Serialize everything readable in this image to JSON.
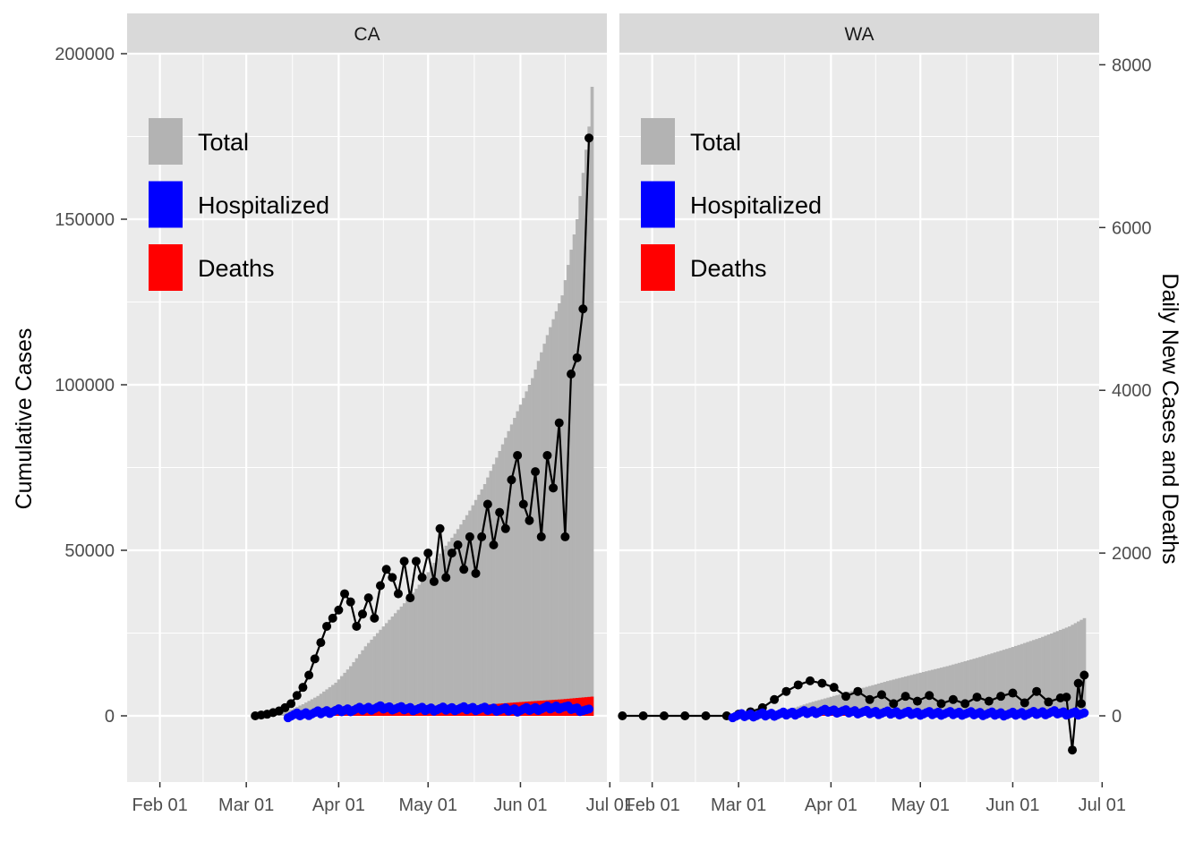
{
  "chart_data": {
    "type": "faceted bar + line + scatter",
    "ylabel_left": "Cumulative Cases",
    "ylabel_right": "Daily New Cases and Deaths",
    "x_ticks": [
      "Feb 01",
      "Mar 01",
      "Apr 01",
      "May 01",
      "Jun 01",
      "Jul 01"
    ],
    "y_left_ticks": [
      0,
      50000,
      100000,
      150000,
      200000
    ],
    "y_left_range": [
      -20000,
      200000
    ],
    "y_right_ticks": [
      0,
      2000,
      4000,
      6000,
      8000
    ],
    "legend": [
      "Total",
      "Hospitalized",
      "Deaths"
    ],
    "colors": {
      "total": "#b3b3b3",
      "hospitalized": "#0000ff",
      "deaths": "#ff0000",
      "daily": "#000000"
    },
    "panels": [
      {
        "label": "CA",
        "x_range": [
          "2020-01-21",
          "2020-06-30"
        ],
        "cumulative_total": {
          "dates": [
            "2020-03-04",
            "2020-03-10",
            "2020-03-15",
            "2020-03-20",
            "2020-03-25",
            "2020-03-31",
            "2020-04-05",
            "2020-04-10",
            "2020-04-15",
            "2020-04-20",
            "2020-04-25",
            "2020-04-30",
            "2020-05-05",
            "2020-05-10",
            "2020-05-15",
            "2020-05-20",
            "2020-05-25",
            "2020-05-31",
            "2020-06-05",
            "2020-06-10",
            "2020-06-15",
            "2020-06-20",
            "2020-06-24",
            "2020-06-25"
          ],
          "values": [
            200,
            600,
            1500,
            3500,
            6000,
            10000,
            15000,
            21000,
            26000,
            31000,
            36000,
            42000,
            49000,
            55000,
            62000,
            70000,
            80000,
            92000,
            102000,
            115000,
            127000,
            150000,
            178000,
            190000
          ]
        },
        "cumulative_deaths": {
          "dates": [
            "2020-03-15",
            "2020-03-31",
            "2020-04-15",
            "2020-04-30",
            "2020-05-15",
            "2020-05-31",
            "2020-06-15",
            "2020-06-25"
          ],
          "values": [
            0,
            500,
            1500,
            2200,
            3000,
            4100,
            5000,
            5800
          ]
        },
        "daily_new": {
          "dates": [
            "2020-03-04",
            "2020-03-06",
            "2020-03-08",
            "2020-03-10",
            "2020-03-12",
            "2020-03-14",
            "2020-03-16",
            "2020-03-18",
            "2020-03-20",
            "2020-03-22",
            "2020-03-24",
            "2020-03-26",
            "2020-03-28",
            "2020-03-30",
            "2020-04-01",
            "2020-04-03",
            "2020-04-05",
            "2020-04-07",
            "2020-04-09",
            "2020-04-11",
            "2020-04-13",
            "2020-04-15",
            "2020-04-17",
            "2020-04-19",
            "2020-04-21",
            "2020-04-23",
            "2020-04-25",
            "2020-04-27",
            "2020-04-29",
            "2020-05-01",
            "2020-05-03",
            "2020-05-05",
            "2020-05-07",
            "2020-05-09",
            "2020-05-11",
            "2020-05-13",
            "2020-05-15",
            "2020-05-17",
            "2020-05-19",
            "2020-05-21",
            "2020-05-23",
            "2020-05-25",
            "2020-05-27",
            "2020-05-29",
            "2020-05-31",
            "2020-06-02",
            "2020-06-04",
            "2020-06-06",
            "2020-06-08",
            "2020-06-10",
            "2020-06-12",
            "2020-06-14",
            "2020-06-16",
            "2020-06-18",
            "2020-06-20",
            "2020-06-22",
            "2020-06-24"
          ],
          "values": [
            0,
            10,
            20,
            40,
            60,
            100,
            150,
            250,
            350,
            500,
            700,
            900,
            1100,
            1200,
            1300,
            1500,
            1400,
            1100,
            1250,
            1450,
            1200,
            1600,
            1800,
            1700,
            1500,
            1900,
            1450,
            1900,
            1700,
            2000,
            1650,
            2300,
            1700,
            2000,
            2100,
            1800,
            2200,
            1750,
            2200,
            2600,
            2100,
            2500,
            2300,
            2900,
            3200,
            2600,
            2400,
            3000,
            2200,
            3200,
            2800,
            3600,
            2200,
            4200,
            4400,
            5000,
            7100
          ]
        },
        "daily_hospitalized": {
          "dates": [
            "2020-03-15",
            "2020-03-31",
            "2020-04-15",
            "2020-04-30",
            "2020-05-15",
            "2020-05-31",
            "2020-06-15",
            "2020-06-24"
          ],
          "values": [
            0,
            60,
            100,
            80,
            90,
            70,
            110,
            60
          ]
        }
      },
      {
        "label": "WA",
        "x_range": [
          "2020-01-21",
          "2020-06-30"
        ],
        "cumulative_total": {
          "dates": [
            "2020-02-28",
            "2020-03-05",
            "2020-03-10",
            "2020-03-15",
            "2020-03-20",
            "2020-03-25",
            "2020-03-31",
            "2020-04-10",
            "2020-04-20",
            "2020-04-30",
            "2020-05-10",
            "2020-05-20",
            "2020-05-31",
            "2020-06-10",
            "2020-06-20",
            "2020-06-25"
          ],
          "values": [
            0,
            300,
            900,
            1700,
            2500,
            4000,
            5500,
            8000,
            10500,
            12800,
            15000,
            17500,
            20500,
            23500,
            27000,
            29500
          ]
        },
        "cumulative_deaths": {
          "dates": [
            "2020-02-28",
            "2020-03-31",
            "2020-04-30",
            "2020-05-31",
            "2020-06-25"
          ],
          "values": [
            0,
            300,
            700,
            1050,
            1300
          ]
        },
        "daily_new": {
          "dates": [
            "2020-01-22",
            "2020-01-29",
            "2020-02-05",
            "2020-02-12",
            "2020-02-19",
            "2020-02-26",
            "2020-03-01",
            "2020-03-05",
            "2020-03-09",
            "2020-03-13",
            "2020-03-17",
            "2020-03-21",
            "2020-03-25",
            "2020-03-29",
            "2020-04-02",
            "2020-04-06",
            "2020-04-10",
            "2020-04-14",
            "2020-04-18",
            "2020-04-22",
            "2020-04-26",
            "2020-04-30",
            "2020-05-04",
            "2020-05-08",
            "2020-05-12",
            "2020-05-16",
            "2020-05-20",
            "2020-05-24",
            "2020-05-28",
            "2020-06-01",
            "2020-06-05",
            "2020-06-09",
            "2020-06-13",
            "2020-06-17",
            "2020-06-19",
            "2020-06-21",
            "2020-06-23",
            "2020-06-24",
            "2020-06-25"
          ],
          "values": [
            0,
            0,
            0,
            0,
            0,
            0,
            20,
            50,
            100,
            200,
            300,
            380,
            430,
            400,
            350,
            240,
            300,
            200,
            260,
            150,
            240,
            180,
            250,
            150,
            200,
            150,
            230,
            180,
            240,
            280,
            160,
            300,
            170,
            220,
            230,
            -420,
            400,
            150,
            500
          ]
        },
        "daily_hospitalized": {
          "dates": [
            "2020-02-28",
            "2020-03-15",
            "2020-03-31",
            "2020-04-15",
            "2020-04-30",
            "2020-05-15",
            "2020-05-31",
            "2020-06-15",
            "2020-06-25"
          ],
          "values": [
            0,
            20,
            60,
            40,
            30,
            30,
            20,
            40,
            20
          ]
        }
      }
    ]
  }
}
